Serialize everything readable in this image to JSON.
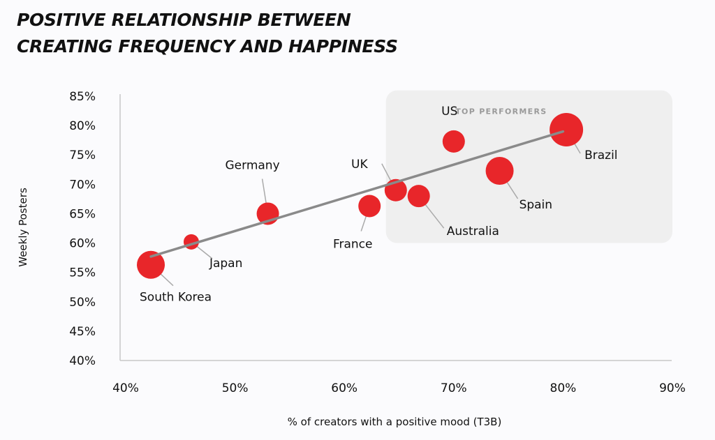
{
  "title_lines": [
    "POSITIVE RELATIONSHIP BETWEEN",
    "CREATING FREQUENCY AND HAPPINESS"
  ],
  "chart_data": {
    "type": "scatter",
    "xlabel": "% of creators with a positive mood (T3B)",
    "ylabel": "Weekly Posters",
    "xlim": [
      40,
      90
    ],
    "ylim": [
      40,
      85
    ],
    "x_ticks": [
      "40%",
      "50%",
      "60%",
      "70%",
      "80%",
      "90%"
    ],
    "y_ticks": [
      "85%",
      "80%",
      "75%",
      "70%",
      "65%",
      "60%",
      "55%",
      "50%",
      "45%",
      "40%"
    ],
    "grid": false,
    "highlight_box": {
      "label": "TOP PERFORMERS",
      "x_range": [
        63.8,
        90
      ],
      "y_range": [
        60,
        86
      ]
    },
    "trendline": {
      "x": [
        42.3,
        80.0
      ],
      "y": [
        57.7,
        79.0
      ]
    },
    "point_color": "#e8262a",
    "points": [
      {
        "label": "South Korea",
        "x": 42.3,
        "y": 56.3,
        "size": "large"
      },
      {
        "label": "Japan",
        "x": 46.0,
        "y": 60.2,
        "size": "small"
      },
      {
        "label": "Germany",
        "x": 53.0,
        "y": 65.0,
        "size": "medium"
      },
      {
        "label": "France",
        "x": 62.3,
        "y": 66.3,
        "size": "medium"
      },
      {
        "label": "UK",
        "x": 64.7,
        "y": 69.0,
        "size": "medium"
      },
      {
        "label": "Australia",
        "x": 66.8,
        "y": 68.0,
        "size": "medium"
      },
      {
        "label": "US",
        "x": 70.0,
        "y": 77.3,
        "size": "medium"
      },
      {
        "label": "Spain",
        "x": 74.2,
        "y": 72.3,
        "size": "large"
      },
      {
        "label": "Brazil",
        "x": 80.3,
        "y": 79.3,
        "size": "xlarge"
      }
    ]
  }
}
